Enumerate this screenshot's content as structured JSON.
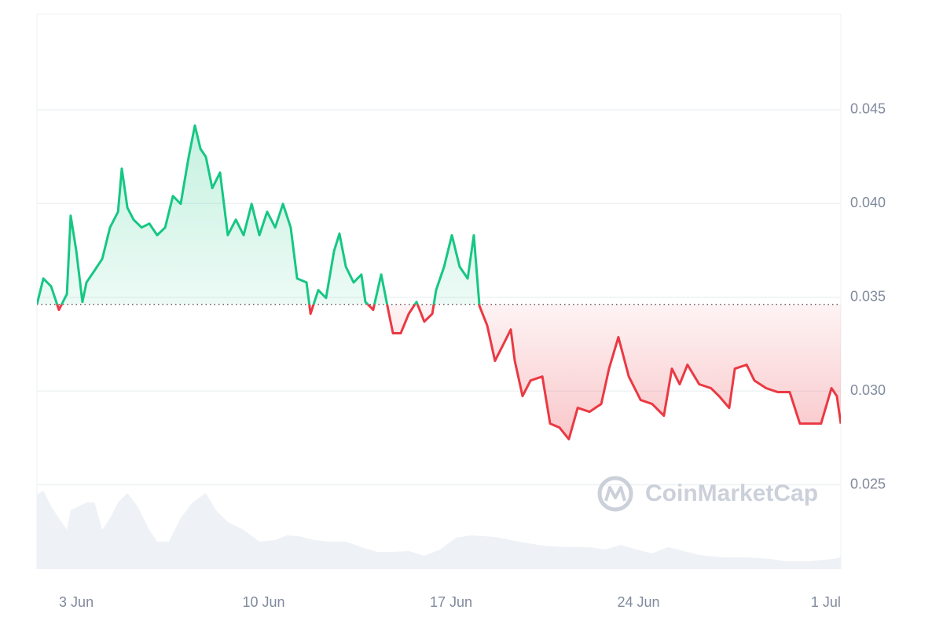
{
  "chart_data": {
    "type": "line",
    "watermark": "CoinMarketCap",
    "x": [
      1.53,
      1.77,
      2.06,
      2.35,
      2.65,
      2.79,
      3.0,
      3.23,
      3.38,
      3.68,
      3.97,
      4.26,
      4.56,
      4.7,
      4.91,
      5.14,
      5.44,
      5.73,
      6.02,
      6.32,
      6.61,
      6.9,
      7.2,
      7.43,
      7.64,
      7.84,
      8.08,
      8.37,
      8.66,
      8.96,
      9.25,
      9.55,
      9.84,
      10.13,
      10.43,
      10.72,
      11.01,
      11.25,
      11.6,
      11.75,
      12.04,
      12.33,
      12.63,
      12.83,
      13.07,
      13.36,
      13.65,
      13.8,
      14.09,
      14.39,
      14.68,
      14.83,
      15.12,
      15.42,
      15.71,
      16.0,
      16.3,
      16.44,
      16.74,
      17.03,
      17.32,
      17.62,
      17.85,
      18.06,
      18.35,
      18.64,
      18.94,
      19.23,
      19.38,
      19.67,
      19.97,
      20.41,
      20.7,
      21.05,
      21.4,
      21.73,
      22.17,
      22.61,
      22.9,
      23.25,
      23.64,
      24.08,
      24.51,
      24.95,
      25.25,
      25.54,
      25.83,
      26.27,
      26.71,
      27.01,
      27.39,
      27.6,
      28.04,
      28.33,
      28.77,
      29.21,
      29.65,
      30.03,
      30.38,
      30.82,
      31.21,
      31.41,
      31.56
    ],
    "values": [
      0.03462,
      0.036,
      0.03558,
      0.03433,
      0.03517,
      0.03935,
      0.03747,
      0.03475,
      0.03579,
      0.03642,
      0.03705,
      0.03872,
      0.03956,
      0.04186,
      0.03977,
      0.03914,
      0.03872,
      0.03893,
      0.03831,
      0.03872,
      0.0404,
      0.03998,
      0.04249,
      0.04416,
      0.04291,
      0.04249,
      0.04082,
      0.04165,
      0.03831,
      0.03914,
      0.03831,
      0.03998,
      0.03831,
      0.03956,
      0.03872,
      0.03998,
      0.03872,
      0.036,
      0.03579,
      0.03412,
      0.03538,
      0.03496,
      0.03747,
      0.03839,
      0.03663,
      0.03579,
      0.03621,
      0.03475,
      0.03433,
      0.03621,
      0.03412,
      0.03308,
      0.03308,
      0.03412,
      0.03475,
      0.0337,
      0.03412,
      0.03538,
      0.03663,
      0.03831,
      0.03663,
      0.036,
      0.03831,
      0.03454,
      0.03349,
      0.03161,
      0.03245,
      0.03328,
      0.03161,
      0.02973,
      0.03056,
      0.03077,
      0.02826,
      0.02805,
      0.02743,
      0.0291,
      0.02889,
      0.02931,
      0.03119,
      0.03287,
      0.03077,
      0.02952,
      0.02931,
      0.02868,
      0.03119,
      0.03036,
      0.0314,
      0.03036,
      0.03015,
      0.02973,
      0.0291,
      0.03119,
      0.0314,
      0.03056,
      0.03015,
      0.02994,
      0.02994,
      0.02826,
      0.02826,
      0.02826,
      0.03015,
      0.02973,
      0.02826
    ],
    "baseline": 0.03462,
    "up_color": "#16c784",
    "down_color": "#ea3943",
    "xlim": [
      1.53,
      31.56
    ],
    "xticks": [
      {
        "value": 3,
        "label": "3 Jun"
      },
      {
        "value": 10,
        "label": "10 Jun"
      },
      {
        "value": 17,
        "label": "17 Jun"
      },
      {
        "value": 24,
        "label": "24 Jun"
      },
      {
        "value": 31,
        "label": "1 Jul"
      }
    ],
    "ylim": [
      0.0205,
      0.0501
    ],
    "yticks": [
      0.025,
      {
        "value": 0.03,
        "label": "0.030"
      },
      0.035,
      {
        "value": 0.04,
        "label": "0.040"
      },
      0.045
    ],
    "grid": true,
    "volume": {
      "color": "#eef1f5",
      "ylim": [
        0,
        100
      ],
      "x": [
        1.53,
        1.77,
        2.06,
        2.35,
        2.65,
        2.79,
        3.09,
        3.38,
        3.68,
        3.97,
        4.26,
        4.56,
        4.91,
        5.29,
        5.73,
        6.02,
        6.46,
        6.9,
        7.34,
        7.84,
        8.22,
        8.66,
        9.25,
        9.84,
        10.43,
        10.87,
        11.31,
        11.89,
        12.48,
        13.07,
        13.65,
        14.24,
        14.83,
        15.42,
        16.0,
        16.59,
        17.18,
        17.76,
        18.64,
        19.53,
        20.41,
        21.29,
        22.17,
        22.75,
        23.34,
        23.93,
        24.51,
        25.1,
        25.69,
        26.27,
        27.15,
        28.04,
        28.92,
        29.5,
        30.38,
        31.27,
        31.56
      ],
      "values": [
        95,
        100,
        80,
        65,
        50,
        75,
        80,
        85,
        85,
        50,
        65,
        85,
        97,
        80,
        50,
        35,
        35,
        65,
        85,
        97,
        75,
        60,
        50,
        35,
        37,
        43,
        42,
        37,
        35,
        35,
        28,
        22,
        22,
        23,
        17,
        25,
        40,
        43,
        41,
        35,
        30,
        28,
        28,
        25,
        31,
        25,
        20,
        28,
        23,
        18,
        15,
        15,
        13,
        10,
        10,
        13,
        15
      ]
    }
  }
}
